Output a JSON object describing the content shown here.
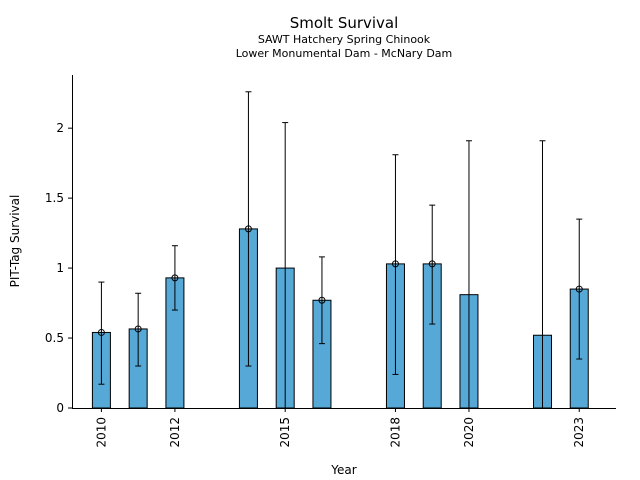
{
  "chart_data": {
    "type": "bar",
    "title": "Smolt Survival",
    "subtitle_lines": [
      "SAWT Hatchery Spring Chinook",
      "Lower Monumental Dam - McNary Dam"
    ],
    "xlabel": "Year",
    "ylabel": "PIT-Tag Survival",
    "x_ticks": [
      2010,
      2012,
      2015,
      2018,
      2020,
      2023
    ],
    "y_ticks": [
      0,
      0.5,
      1,
      1.5,
      2
    ],
    "y_tick_labels": [
      "0",
      "0.5",
      "1",
      "1.5",
      "2"
    ],
    "xlim": [
      2009.2,
      2024.0
    ],
    "ylim": [
      0,
      2.38
    ],
    "grid": false,
    "bar_color": "#56a8d6",
    "series": [
      {
        "points": [
          {
            "x": 2010,
            "value": 0.54,
            "lower": 0.17,
            "upper": 0.9,
            "marker": true
          },
          {
            "x": 2011,
            "value": 0.565,
            "lower": 0.3,
            "upper": 0.82,
            "marker": true
          },
          {
            "x": 2012,
            "value": 0.93,
            "lower": 0.7,
            "upper": 1.16,
            "marker": true
          },
          {
            "x": 2014,
            "value": 1.28,
            "lower": 0.3,
            "upper": 2.26,
            "marker": true
          },
          {
            "x": 2015,
            "value": 1.0,
            "lower": null,
            "upper": 2.04,
            "marker": false
          },
          {
            "x": 2016,
            "value": 0.77,
            "lower": 0.46,
            "upper": 1.08,
            "marker": true
          },
          {
            "x": 2018,
            "value": 1.03,
            "lower": 0.24,
            "upper": 1.81,
            "marker": true
          },
          {
            "x": 2019,
            "value": 1.03,
            "lower": 0.6,
            "upper": 1.45,
            "marker": true
          },
          {
            "x": 2020,
            "value": 0.81,
            "lower": null,
            "upper": 1.91,
            "marker": false
          },
          {
            "x": 2022,
            "value": 0.52,
            "lower": null,
            "upper": 1.91,
            "marker": false
          },
          {
            "x": 2023,
            "value": 0.85,
            "lower": 0.35,
            "upper": 1.35,
            "marker": true
          }
        ]
      }
    ]
  }
}
